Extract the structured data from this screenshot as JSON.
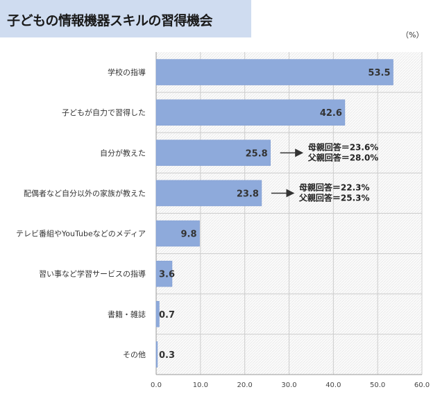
{
  "title": "子どもの情報機器スキルの習得機会",
  "unit": "（%）",
  "colors": {
    "bar": "#8eaadb",
    "bar_stroke": "#7b98cf",
    "title_bg": "#cfdcf0",
    "grid": "#cccccc",
    "arrow": "#333333"
  },
  "chart_data": {
    "type": "bar",
    "orientation": "horizontal",
    "categories": [
      "学校の指導",
      "子どもが自力で習得した",
      "自分が教えた",
      "配偶者など自分以外の家族が教えた",
      "テレビ番組やYouTubeなどのメディア",
      "習い事など学習サービスの指導",
      "書籍・雑誌",
      "その他"
    ],
    "values": [
      53.5,
      42.6,
      25.8,
      23.8,
      9.8,
      3.6,
      0.7,
      0.3
    ],
    "value_labels": [
      "53.5",
      "42.6",
      "25.8",
      "23.8",
      "9.8",
      "3.6",
      "0.7",
      "0.3"
    ],
    "xlim": [
      0,
      60
    ],
    "x_ticks": [
      "0.0",
      "10.0",
      "20.0",
      "30.0",
      "40.0",
      "50.0",
      "60.0"
    ],
    "x_tick_values": [
      0,
      10,
      20,
      30,
      40,
      50,
      60
    ],
    "grid": true,
    "legend": "none",
    "annotations": [
      {
        "category_index": 2,
        "lines": [
          "母親回答＝23.6%",
          "父親回答＝28.0%"
        ]
      },
      {
        "category_index": 3,
        "lines": [
          "母親回答＝22.3%",
          "父親回答＝25.3%"
        ]
      }
    ]
  }
}
